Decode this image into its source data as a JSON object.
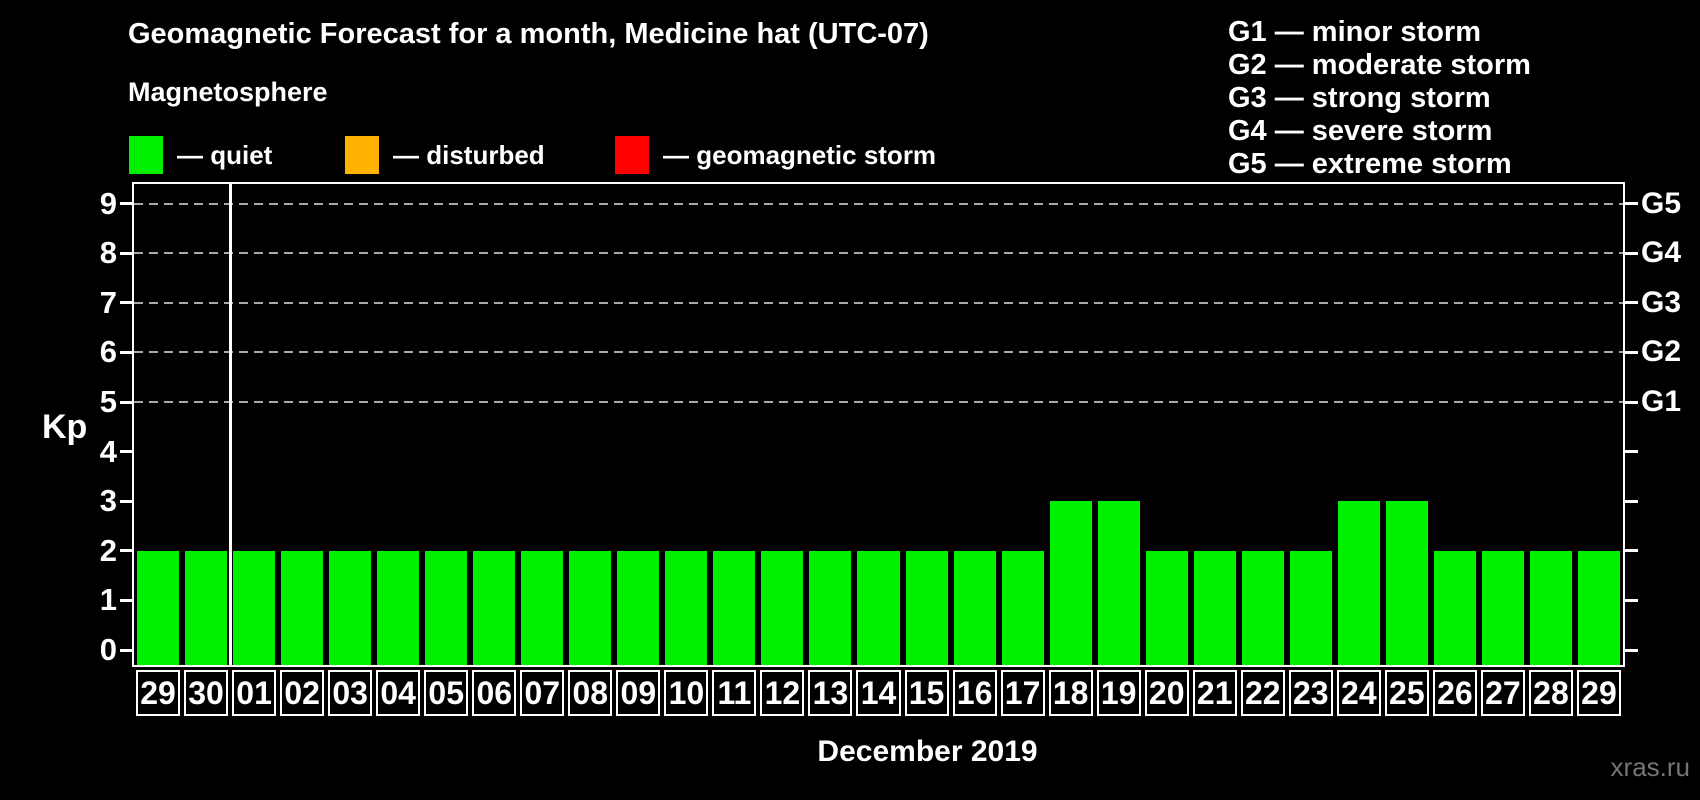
{
  "title": "Geomagnetic Forecast for a month, Medicine hat (UTC-07)",
  "subtitle": "Magnetosphere",
  "dash": "—",
  "legend": [
    {
      "name": "quiet",
      "label": "— quiet",
      "color": "#00F000"
    },
    {
      "name": "disturbed",
      "label": "— disturbed",
      "color": "#FFB300"
    },
    {
      "name": "geomagnetic-storm",
      "label": "— geomagnetic storm",
      "color": "#FF0000"
    }
  ],
  "storm_scale": [
    {
      "code": "G1",
      "desc": "minor storm"
    },
    {
      "code": "G2",
      "desc": "moderate storm"
    },
    {
      "code": "G3",
      "desc": "strong storm"
    },
    {
      "code": "G4",
      "desc": "severe storm"
    },
    {
      "code": "G5",
      "desc": "extreme storm"
    }
  ],
  "axes": {
    "y_label": "Kp",
    "y_ticks": [
      0,
      1,
      2,
      3,
      4,
      5,
      6,
      7,
      8,
      9
    ],
    "right_labels": [
      {
        "code": "G1",
        "kp": 5
      },
      {
        "code": "G2",
        "kp": 6
      },
      {
        "code": "G3",
        "kp": 7
      },
      {
        "code": "G4",
        "kp": 8
      },
      {
        "code": "G5",
        "kp": 9
      }
    ],
    "x_label": "December 2019"
  },
  "watermark": "xras.ru",
  "chart_data": {
    "type": "bar",
    "title": "Geomagnetic Forecast for a month, Medicine hat (UTC-07)",
    "xlabel": "December 2019",
    "ylabel": "Kp",
    "ylim": [
      0,
      9.4
    ],
    "grid": "dashed horizontal lines at Kp 5-9 (G1-G5 levels) only",
    "legend_position": "top-left",
    "categories": [
      "29",
      "30",
      "01",
      "02",
      "03",
      "04",
      "05",
      "06",
      "07",
      "08",
      "09",
      "10",
      "11",
      "12",
      "13",
      "14",
      "15",
      "16",
      "17",
      "18",
      "19",
      "20",
      "21",
      "22",
      "23",
      "24",
      "25",
      "26",
      "27",
      "28",
      "29"
    ],
    "values": [
      2,
      2,
      2,
      2,
      2,
      2,
      2,
      2,
      2,
      2,
      2,
      2,
      2,
      2,
      2,
      2,
      2,
      2,
      2,
      3,
      3,
      2,
      2,
      2,
      2,
      3,
      3,
      2,
      2,
      2,
      2
    ],
    "separator_after_index": 1,
    "note_prev_month_categories": [
      "29",
      "30"
    ],
    "gridlines_at": [
      5,
      6,
      7,
      8,
      9
    ],
    "color_rule": {
      "quiet_kp_lt": 4,
      "disturbed_kp": 4,
      "storm_kp_gte": 5
    },
    "bar_color": "#00F000"
  }
}
